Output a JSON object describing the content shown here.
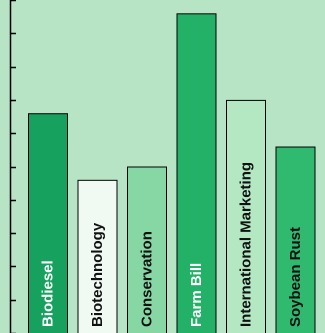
{
  "chart_data": {
    "type": "bar",
    "title": "",
    "xlabel": "",
    "ylabel": "",
    "categories": [
      "Biodiesel",
      "Biotechnology",
      "Conservation",
      "Farm Bill",
      "International Marketing",
      "Soybean Rust"
    ],
    "values": [
      6.6,
      4.6,
      5.0,
      9.6,
      7.0,
      5.6
    ],
    "ylim": [
      0,
      10
    ],
    "y_tick_count": 10,
    "tick_labels_shown": false,
    "grid": false,
    "legend": "none",
    "background_color": "#b7e4c4",
    "bar_colors": [
      "#16a25e",
      "#f0faf3",
      "#86d7a4",
      "#23b067",
      "#b3e8c3",
      "#2fba70"
    ],
    "label_colors": [
      "#ffffff",
      "#111111",
      "#111111",
      "#ffffff",
      "#111111",
      "#111111"
    ]
  }
}
